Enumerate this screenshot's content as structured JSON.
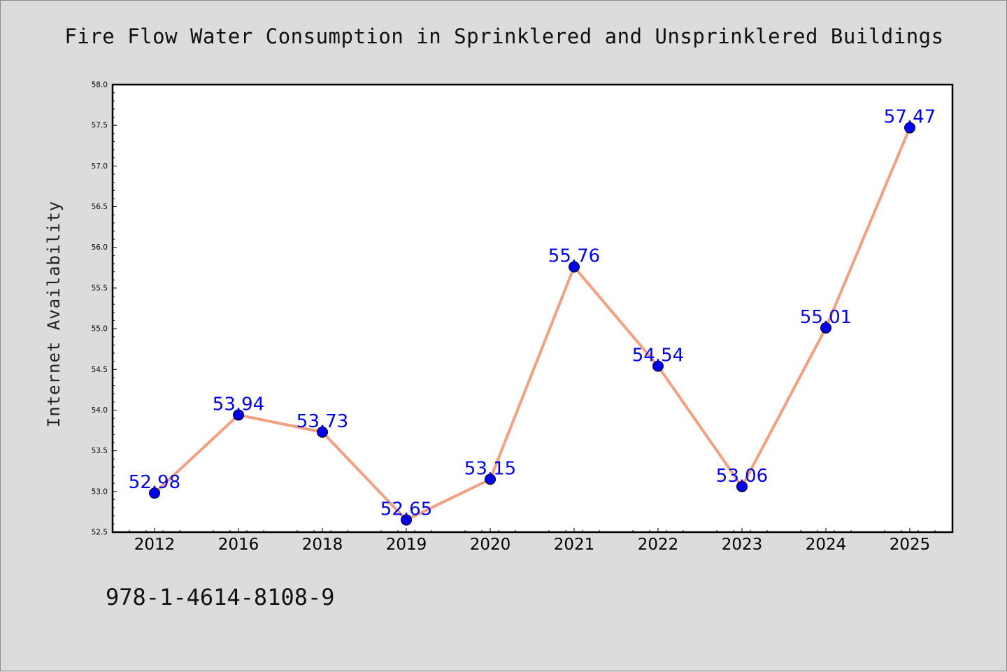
{
  "chart_data": {
    "type": "line",
    "title": "Fire Flow Water Consumption in Sprinklered and Unsprinklered Buildings",
    "xlabel": "",
    "ylabel": "Internet Availability",
    "categories": [
      "2012",
      "2016",
      "2018",
      "2019",
      "2020",
      "2021",
      "2022",
      "2023",
      "2024",
      "2025"
    ],
    "series": [
      {
        "values": [
          52.98,
          53.94,
          53.73,
          52.65,
          53.15,
          55.76,
          54.54,
          53.06,
          55.01,
          57.47
        ],
        "labels": [
          "52.98",
          "53.94",
          "53.73",
          "52.65",
          "53.15",
          "55.76",
          "54.54",
          "53.06",
          "55.01",
          "57.47"
        ],
        "line_color": "#f4a07e",
        "marker_color": "#0000ee"
      }
    ],
    "ylim": [
      52.5,
      58.0
    ],
    "yticks": [
      "52.5",
      "53.0",
      "53.5",
      "54.0",
      "54.5",
      "55.0",
      "55.5",
      "56.0",
      "56.5",
      "57.0",
      "57.5",
      "58.0"
    ],
    "grid": false,
    "legend": "none",
    "label_color": "#0000ff"
  },
  "footer_text": "978-1-4614-8108-9"
}
